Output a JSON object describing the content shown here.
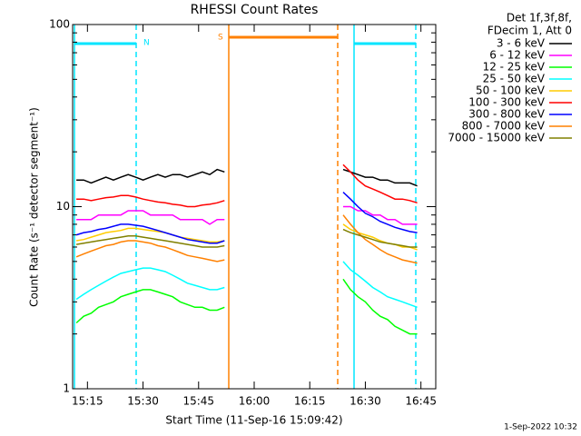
{
  "chart_data": {
    "type": "line",
    "title": "RHESSI Count Rates",
    "x_label": "Start Time (11-Sep-16 15:09:42)",
    "y_label": "Count Rate (s⁻¹ detector segment⁻¹)",
    "legend_header": [
      "Det 1f,3f,8f,",
      "FDecim 1, Att 0"
    ],
    "footer": "1-Sep-2022 10:32",
    "annotations": [
      "N",
      "S"
    ],
    "log_y": true,
    "ylim": [
      1,
      100
    ],
    "yticks": [
      1,
      10,
      100
    ],
    "xlim": [
      "15:11",
      "16:49"
    ],
    "xticks": [
      "15:15",
      "15:30",
      "15:45",
      "16:00",
      "16:15",
      "16:30",
      "16:45"
    ],
    "x": [
      "15:12",
      "15:14",
      "15:16",
      "15:18",
      "15:20",
      "15:22",
      "15:24",
      "15:26",
      "15:28",
      "15:30",
      "15:32",
      "15:34",
      "15:36",
      "15:38",
      "15:40",
      "15:42",
      "15:44",
      "15:46",
      "15:48",
      "15:50",
      "15:52",
      "16:08",
      "16:24",
      "16:26",
      "16:28",
      "16:30",
      "16:32",
      "16:34",
      "16:36",
      "16:38",
      "16:40",
      "16:42",
      "16:44"
    ],
    "series": [
      {
        "name": "3 - 6 keV",
        "color": "#000000",
        "values": [
          14,
          14,
          13.5,
          14,
          14.5,
          14,
          14.5,
          15,
          14.5,
          14,
          14.5,
          15,
          14.5,
          15,
          15,
          14.5,
          15,
          15.5,
          15,
          16,
          15.5,
          null,
          16,
          15.5,
          15,
          14.5,
          14.5,
          14,
          14,
          13.5,
          13.5,
          13.5,
          13
        ]
      },
      {
        "name": "6 - 12 keV",
        "color": "#ff00ff",
        "values": [
          8.5,
          8.5,
          8.5,
          9,
          9,
          9,
          9,
          9.5,
          9.5,
          9.5,
          9,
          9,
          9,
          9,
          8.5,
          8.5,
          8.5,
          8.5,
          8,
          8.5,
          8.5,
          null,
          10,
          10,
          9.5,
          9.5,
          9,
          9,
          8.5,
          8.5,
          8,
          8,
          8
        ]
      },
      {
        "name": "12 - 25 keV",
        "color": "#00ff00",
        "values": [
          2.3,
          2.5,
          2.6,
          2.8,
          2.9,
          3,
          3.2,
          3.3,
          3.4,
          3.5,
          3.5,
          3.4,
          3.3,
          3.2,
          3,
          2.9,
          2.8,
          2.8,
          2.7,
          2.7,
          2.8,
          null,
          4,
          3.5,
          3.2,
          3,
          2.7,
          2.5,
          2.4,
          2.2,
          2.1,
          2,
          2
        ]
      },
      {
        "name": "25 - 50 keV",
        "color": "#00ffff",
        "values": [
          3.1,
          3.3,
          3.5,
          3.7,
          3.9,
          4.1,
          4.3,
          4.4,
          4.5,
          4.6,
          4.6,
          4.5,
          4.4,
          4.2,
          4,
          3.8,
          3.7,
          3.6,
          3.5,
          3.5,
          3.6,
          null,
          5,
          4.5,
          4.2,
          3.9,
          3.6,
          3.4,
          3.2,
          3.1,
          3,
          2.9,
          2.8
        ]
      },
      {
        "name": "50 - 100 keV",
        "color": "#ffcc00",
        "values": [
          6.5,
          6.6,
          6.8,
          7,
          7.2,
          7.3,
          7.4,
          7.6,
          7.6,
          7.5,
          7.4,
          7.3,
          7.2,
          7,
          6.8,
          6.7,
          6.6,
          6.5,
          6.4,
          6.4,
          6.5,
          null,
          8,
          7.5,
          7.2,
          7,
          6.8,
          6.5,
          6.3,
          6.2,
          6,
          6,
          5.8
        ]
      },
      {
        "name": "100 - 300 keV",
        "color": "#ff0000",
        "values": [
          11,
          11,
          10.8,
          11,
          11.2,
          11.3,
          11.5,
          11.5,
          11.3,
          11,
          10.8,
          10.6,
          10.5,
          10.3,
          10.2,
          10,
          10,
          10.2,
          10.3,
          10.5,
          10.8,
          null,
          17,
          15.5,
          14,
          13,
          12.5,
          12,
          11.5,
          11,
          11,
          10.8,
          10.5
        ]
      },
      {
        "name": "300 - 800 keV",
        "color": "#0000ff",
        "values": [
          7,
          7.2,
          7.3,
          7.5,
          7.6,
          7.8,
          8,
          8,
          7.9,
          7.8,
          7.6,
          7.4,
          7.2,
          7,
          6.8,
          6.6,
          6.5,
          6.4,
          6.3,
          6.3,
          6.5,
          null,
          12,
          11,
          10,
          9.2,
          8.8,
          8.3,
          8,
          7.7,
          7.5,
          7.3,
          7.2
        ]
      },
      {
        "name": "800 - 7000 keV",
        "color": "#ff8000",
        "values": [
          5.3,
          5.5,
          5.7,
          5.9,
          6.1,
          6.2,
          6.4,
          6.5,
          6.5,
          6.4,
          6.3,
          6.1,
          6,
          5.8,
          5.6,
          5.4,
          5.3,
          5.2,
          5.1,
          5,
          5.1,
          null,
          9,
          8,
          7.2,
          6.6,
          6.2,
          5.8,
          5.5,
          5.3,
          5.1,
          5,
          4.9
        ]
      },
      {
        "name": "7000 - 15000 keV",
        "color": "#808000",
        "values": [
          6.2,
          6.3,
          6.4,
          6.5,
          6.6,
          6.7,
          6.8,
          6.9,
          6.9,
          6.8,
          6.7,
          6.6,
          6.5,
          6.4,
          6.3,
          6.2,
          6.1,
          6,
          6,
          6,
          6.1,
          null,
          7.5,
          7.2,
          7,
          6.8,
          6.6,
          6.4,
          6.3,
          6.2,
          6.1,
          6,
          6
        ]
      }
    ]
  }
}
